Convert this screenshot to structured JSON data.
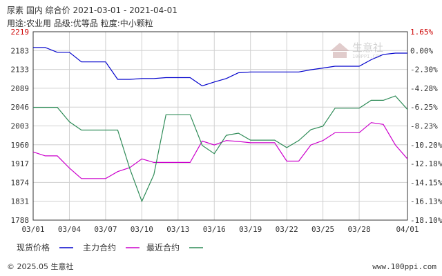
{
  "header": {
    "line1": "尿素  国内  综合价  2021-03-01 - 2021-04-01",
    "line2": "用途:农业用  品级:优等品  粒度:中小颗粒"
  },
  "watermark": {
    "name": "生意社",
    "sub": "100PPI.COM"
  },
  "footer": {
    "copyright": "© 2025.05 生意社",
    "url": "www.100ppi.com"
  },
  "colors": {
    "spot": "#0000cc",
    "main": "#cc00cc",
    "near": "#2e8b57",
    "grid": "#d0d0d0",
    "axis": "#333333"
  },
  "chart_data": {
    "type": "line",
    "x": [
      "03/01",
      "03/02",
      "03/03",
      "03/04",
      "03/05",
      "03/06",
      "03/07",
      "03/08",
      "03/09",
      "03/10",
      "03/11",
      "03/12",
      "03/13",
      "03/14",
      "03/15",
      "03/16",
      "03/17",
      "03/18",
      "03/19",
      "03/20",
      "03/21",
      "03/22",
      "03/23",
      "03/24",
      "03/25",
      "03/26",
      "03/27",
      "03/28",
      "03/29",
      "03/30",
      "03/31",
      "04/01"
    ],
    "x_tick_labels": [
      "03/01",
      "03/04",
      "03/07",
      "03/10",
      "03/13",
      "03/16",
      "03/19",
      "03/22",
      "03/25",
      "03/28",
      "04/01"
    ],
    "y_left": {
      "ticks": [
        "2219",
        "2183",
        "2133",
        "2089",
        "2046",
        "2003",
        "1960",
        "1917",
        "1874",
        "1831",
        "1788"
      ],
      "range": [
        1788,
        2219
      ]
    },
    "y_right": {
      "ticks": [
        "1.65%",
        "0.00%",
        "-2.30%",
        "-4.28%",
        "-6.25%",
        "-8.23%",
        "-10.20%",
        "-12.18%",
        "-14.15%",
        "-16.13%",
        "-18.10%"
      ]
    },
    "series": [
      {
        "name": "现货价格",
        "color": "#0000cc",
        "values": [
          2183,
          2183,
          2172,
          2172,
          2150,
          2150,
          2150,
          2110,
          2110,
          2112,
          2112,
          2114,
          2114,
          2114,
          2095,
          2104,
          2112,
          2125,
          2127,
          2127,
          2127,
          2127,
          2127,
          2132,
          2136,
          2140,
          2140,
          2140,
          2155,
          2167,
          2170,
          2170
        ]
      },
      {
        "name": "主力合约",
        "color": "#cc00cc",
        "values": [
          1944,
          1935,
          1935,
          1907,
          1883,
          1883,
          1883,
          1899,
          1908,
          1928,
          1920,
          1920,
          1920,
          1920,
          1969,
          1960,
          1970,
          1968,
          1965,
          1965,
          1965,
          1923,
          1923,
          1960,
          1970,
          1988,
          1988,
          1988,
          2011,
          2007,
          1960,
          1928
        ]
      },
      {
        "name": "最近合约",
        "color": "#2e8b57",
        "values": [
          2046,
          2046,
          2046,
          2013,
          1994,
          1994,
          1994,
          1994,
          1906,
          1831,
          1892,
          2029,
          2029,
          2029,
          1959,
          1940,
          1982,
          1987,
          1971,
          1971,
          1971,
          1954,
          1970,
          1995,
          2003,
          2044,
          2044,
          2044,
          2062,
          2062,
          2072,
          2041
        ]
      }
    ]
  }
}
